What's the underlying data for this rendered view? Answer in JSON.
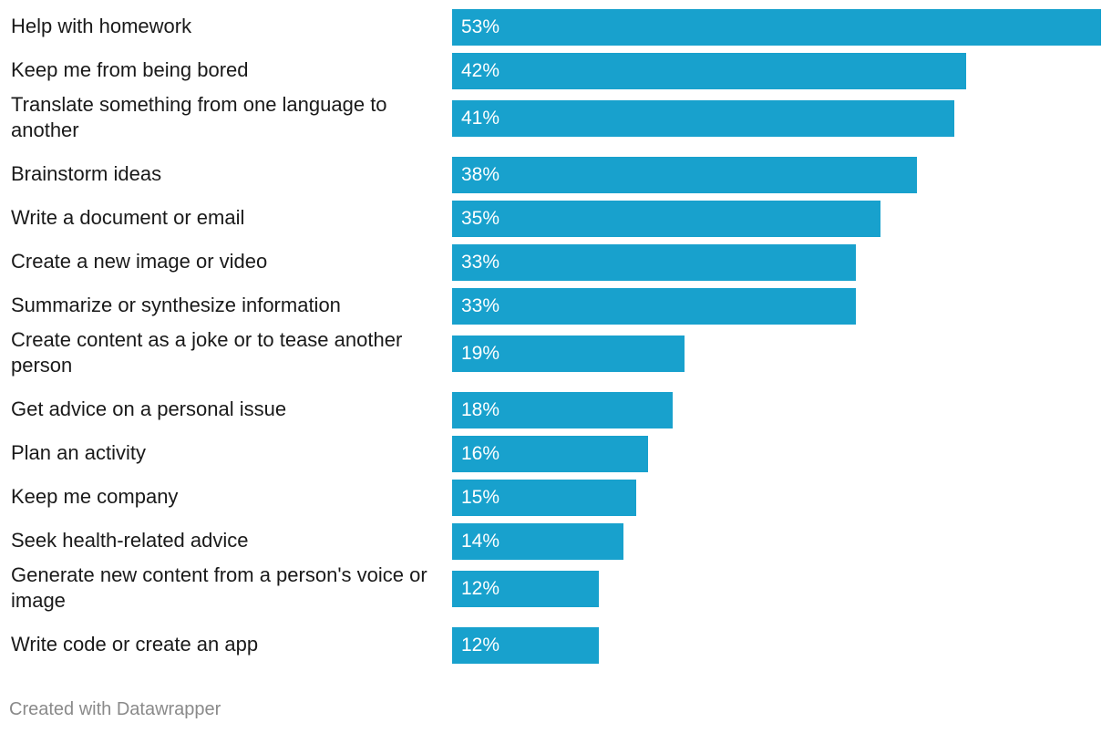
{
  "chart_data": {
    "type": "bar",
    "orientation": "horizontal",
    "categories": [
      "Help with homework",
      "Keep me from being bored",
      "Translate something from one language to another",
      "Brainstorm ideas",
      "Write a document or email",
      "Create a new image or video",
      "Summarize or synthesize information",
      "Create content as a joke or to tease another person",
      "Get advice on a personal issue",
      "Plan an activity",
      "Keep me company",
      "Seek health-related advice",
      "Generate new content from a person's voice or image",
      "Write code or create an app"
    ],
    "values": [
      53,
      42,
      41,
      38,
      35,
      33,
      33,
      19,
      18,
      16,
      15,
      14,
      12,
      12
    ],
    "value_labels": [
      "53%",
      "42%",
      "41%",
      "38%",
      "35%",
      "33%",
      "33%",
      "19%",
      "18%",
      "16%",
      "15%",
      "14%",
      "12%",
      "12%"
    ],
    "unit": "%",
    "xlim": [
      0,
      53
    ],
    "grid": false,
    "bar_color": "#18a1cd",
    "label_color": "#ffffff"
  },
  "footer": {
    "credit": "Created with Datawrapper"
  }
}
